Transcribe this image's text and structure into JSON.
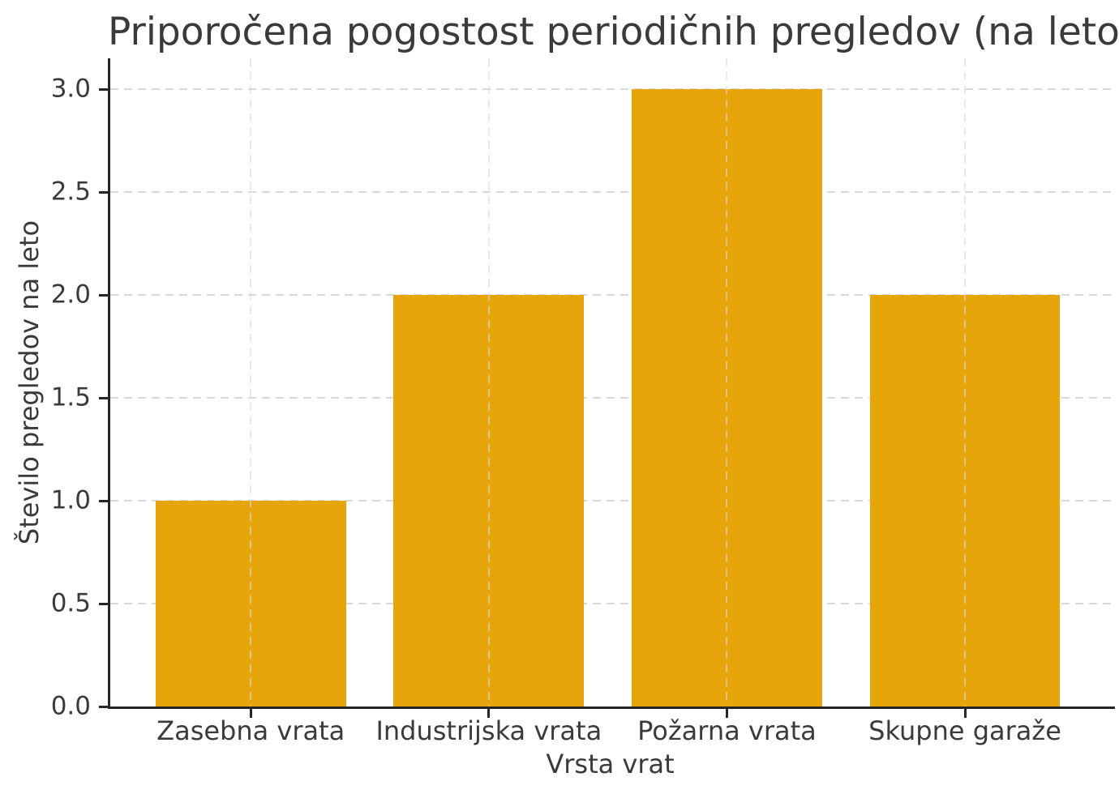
{
  "chart_data": {
    "type": "bar",
    "title": "Priporočena pogostost periodičnih pregledov (na leto)",
    "xlabel": "Vrsta vrat",
    "ylabel": "Število pregledov na leto",
    "categories": [
      "Zasebna vrata",
      "Industrijska vrata",
      "Požarna vrata",
      "Skupne garaže"
    ],
    "values": [
      1,
      2,
      3,
      2
    ],
    "yticks": [
      0.0,
      0.5,
      1.0,
      1.5,
      2.0,
      2.5,
      3.0
    ],
    "ytick_labels": [
      "0.0",
      "0.5",
      "1.0",
      "1.5",
      "2.0",
      "2.5",
      "3.0"
    ],
    "ylim": [
      0,
      3.15
    ],
    "xlim": [
      -0.59,
      3.63
    ],
    "bar_width": 0.8,
    "bar_color": "#E6A50A",
    "spine_color": "#262626",
    "grid": true,
    "grid_line_style": "dashed",
    "grid_color": "#d8d8d8",
    "legend": "none"
  }
}
